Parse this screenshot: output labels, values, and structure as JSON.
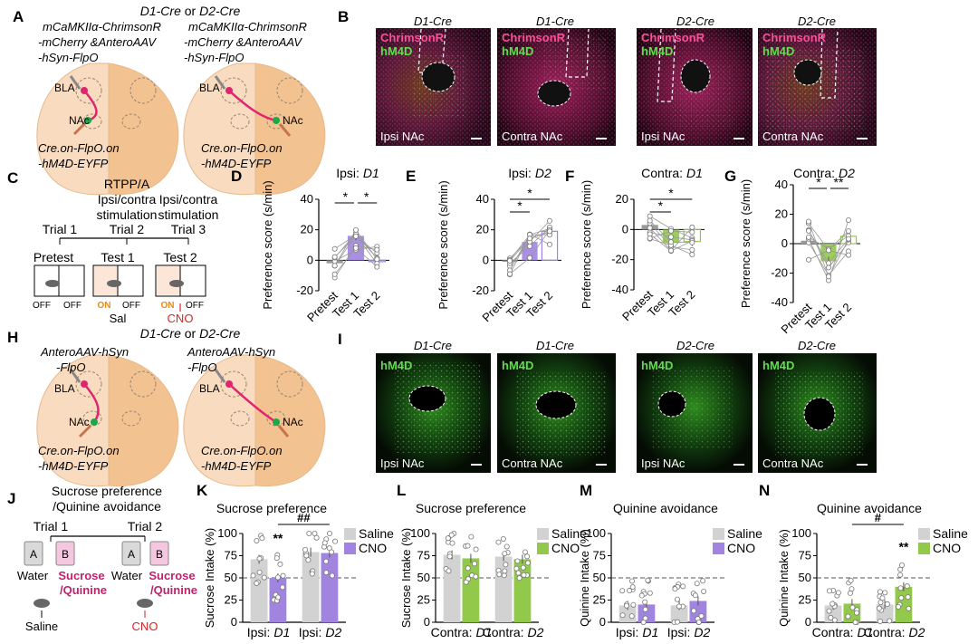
{
  "panels": {
    "A": {
      "letter": "A",
      "header_prefix": "D1-Cre",
      "header_or": " or ",
      "header_suffix": "D2-Cre",
      "left_virus": [
        "mCaMKIIα-ChrimsonR",
        "-mCherry &AnteroAAV",
        "-hSyn-FlpO"
      ],
      "right_virus": [
        "mCaMKIIα-ChrimsonR",
        "-mCherry &AnteroAAV",
        "-hSyn-FlpO"
      ],
      "left_bottom": [
        "Cre.on-FlpO.on",
        "-hM4D-EYFP"
      ],
      "right_bottom": [
        "Cre.on-FlpO.on",
        "-hM4D-EYFP"
      ],
      "bla": "BLA",
      "nac": "NAc"
    },
    "B": {
      "letter": "B",
      "images": [
        {
          "title": "D1-Cre",
          "label1": "ChrimsonR",
          "label2": "hM4D",
          "side": "Ipsi NAc"
        },
        {
          "title": "D1-Cre",
          "label1": "ChrimsonR",
          "label2": "hM4D",
          "side": "Contra NAc"
        },
        {
          "title": "D2-Cre",
          "label1": "ChrimsonR",
          "label2": "hM4D",
          "side": "Ipsi NAc"
        },
        {
          "title": "D2-Cre",
          "label1": "ChrimsonR",
          "label2": "hM4D",
          "side": "Contra NAc"
        }
      ]
    },
    "C": {
      "letter": "C",
      "heading1": "RTPP/A",
      "heading2a": "Ipsi/contra",
      "heading2b": "stimulation",
      "trials": [
        "Trial 1",
        "Trial 2",
        "Trial 3"
      ],
      "phases": [
        "Pretest",
        "Test 1",
        "Test 2"
      ],
      "off": "OFF",
      "on": "ON",
      "sal": "Sal",
      "cno": "CNO"
    },
    "H": {
      "letter": "H",
      "header_prefix": "D1-Cre",
      "header_or": " or ",
      "header_suffix": "D2-Cre",
      "left_virus": [
        "AnteroAAV-hSyn",
        "-FlpO"
      ],
      "right_virus": [
        "AnteroAAV-hSyn",
        "-FlpO"
      ],
      "left_bottom": [
        "Cre.on-FlpO.on",
        "-hM4D-EYFP"
      ],
      "right_bottom": [
        "Cre.on-FlpO.on",
        "-hM4D-EYFP"
      ],
      "bla": "BLA",
      "nac": "NAc"
    },
    "I": {
      "letter": "I",
      "images": [
        {
          "title": "D1-Cre",
          "label": "hM4D",
          "side": "Ipsi NAc"
        },
        {
          "title": "D1-Cre",
          "label": "hM4D",
          "side": "Contra NAc"
        },
        {
          "title": "D2-Cre",
          "label": "hM4D",
          "side": "Ipsi NAc"
        },
        {
          "title": "D2-Cre",
          "label": "hM4D",
          "side": "Contra NAc"
        }
      ]
    },
    "J": {
      "letter": "J",
      "title1": "Sucrose preference",
      "title2": "/Quinine avoidance",
      "trials": [
        "Trial 1",
        "Trial 2"
      ],
      "bottle_a": "A",
      "bottle_b": "B",
      "water": "Water",
      "sucrose": "Sucrose",
      "quinine": "/Quinine",
      "saline": "Saline",
      "cno": "CNO"
    }
  },
  "chart_data": [
    {
      "id": "D",
      "letter": "D",
      "type": "bar",
      "title_prefix": "Ipsi: ",
      "title_ital": "D1",
      "ylabel": "Preference score (s/min)",
      "ylim": [
        -20,
        40
      ],
      "yticks": [
        -20,
        0,
        20,
        40
      ],
      "categories": [
        "Pretest",
        "Test 1",
        "Test 2"
      ],
      "values": [
        -2,
        16,
        0
      ],
      "sig": [
        "*",
        "*"
      ],
      "color": "#a084e0"
    },
    {
      "id": "E",
      "letter": "E",
      "type": "bar",
      "title_prefix": "Ipsi: ",
      "title_ital": "D2",
      "ylabel": "Preference score (s/min)",
      "ylim": [
        -20,
        40
      ],
      "yticks": [
        -20,
        0,
        20,
        40
      ],
      "categories": [
        "Pretest",
        "Test 1",
        "Test 2"
      ],
      "values": [
        -1,
        12,
        19
      ],
      "sig": [
        "*",
        "*"
      ],
      "color": "#a084e0"
    },
    {
      "id": "F",
      "letter": "F",
      "type": "bar",
      "title_prefix": "Contra: ",
      "title_ital": "D1",
      "ylabel": "Preference score (s/min)",
      "ylim": [
        -40,
        20
      ],
      "yticks": [
        -40,
        -20,
        0,
        20
      ],
      "categories": [
        "Pretest",
        "Test 1",
        "Test 2"
      ],
      "values": [
        3,
        -9,
        -8
      ],
      "sig": [
        "*",
        "*"
      ],
      "color": "#92c94a"
    },
    {
      "id": "G",
      "letter": "G",
      "type": "bar",
      "title_prefix": "Contra: ",
      "title_ital": "D2",
      "ylabel": "Preference score (s/min)",
      "ylim": [
        -40,
        40
      ],
      "yticks": [
        -40,
        -20,
        0,
        20,
        40
      ],
      "categories": [
        "Pretest",
        "Test 1",
        "Test 2"
      ],
      "values": [
        2,
        -12,
        5
      ],
      "sig": [
        "*",
        "**"
      ],
      "color": "#92c94a"
    },
    {
      "id": "K",
      "letter": "K",
      "type": "bar",
      "title": "Sucrose preference",
      "ylabel": "Sucrose Intake (%)",
      "ylim": [
        0,
        100
      ],
      "yticks": [
        0,
        25,
        50,
        75,
        100
      ],
      "groups": [
        {
          "prefix": "Ipsi: ",
          "ital": "D1"
        },
        {
          "prefix": "Ipsi: ",
          "ital": "D2"
        }
      ],
      "series": [
        {
          "name": "Saline",
          "values": [
            71,
            79
          ],
          "color": "#d2d2d2"
        },
        {
          "name": "CNO",
          "values": [
            50,
            78
          ],
          "color": "#a084e0"
        }
      ],
      "sig_stars": "**",
      "sig_bracket": "##",
      "reference_line": 50
    },
    {
      "id": "L",
      "letter": "L",
      "type": "bar",
      "title": "Sucrose preference",
      "ylabel": "Sucrose Intake (%)",
      "ylim": [
        0,
        100
      ],
      "yticks": [
        0,
        25,
        50,
        75,
        100
      ],
      "groups": [
        {
          "prefix": "Contra: ",
          "ital": "D1"
        },
        {
          "prefix": "Contra: ",
          "ital": "D2"
        }
      ],
      "series": [
        {
          "name": "Saline",
          "values": [
            76,
            74
          ],
          "color": "#d2d2d2"
        },
        {
          "name": "CNO",
          "values": [
            72,
            71
          ],
          "color": "#92c94a"
        }
      ],
      "reference_line": 50
    },
    {
      "id": "M",
      "letter": "M",
      "type": "bar",
      "title": "Quinine avoidance",
      "ylabel": "Quinine Intake (%)",
      "ylim": [
        0,
        100
      ],
      "yticks": [
        0,
        25,
        50,
        75,
        100
      ],
      "groups": [
        {
          "prefix": "Ipsi: ",
          "ital": "D1"
        },
        {
          "prefix": "Ipsi: ",
          "ital": "D2"
        }
      ],
      "series": [
        {
          "name": "Saline",
          "values": [
            19,
            19
          ],
          "color": "#d2d2d2"
        },
        {
          "name": "CNO",
          "values": [
            20,
            24
          ],
          "color": "#a084e0"
        }
      ],
      "reference_line": 50
    },
    {
      "id": "N",
      "letter": "N",
      "type": "bar",
      "title": "Quinine avoidance",
      "ylabel": "Quinine Intake (%)",
      "ylim": [
        0,
        100
      ],
      "yticks": [
        0,
        25,
        50,
        75,
        100
      ],
      "groups": [
        {
          "prefix": "Contra: ",
          "ital": "D1"
        },
        {
          "prefix": "Contra: ",
          "ital": "D2"
        }
      ],
      "series": [
        {
          "name": "Saline",
          "values": [
            19,
            20
          ],
          "color": "#d2d2d2"
        },
        {
          "name": "CNO",
          "values": [
            21,
            40
          ],
          "color": "#92c94a"
        }
      ],
      "sig_stars": "**",
      "sig_bracket": "#",
      "reference_line": 50
    }
  ]
}
